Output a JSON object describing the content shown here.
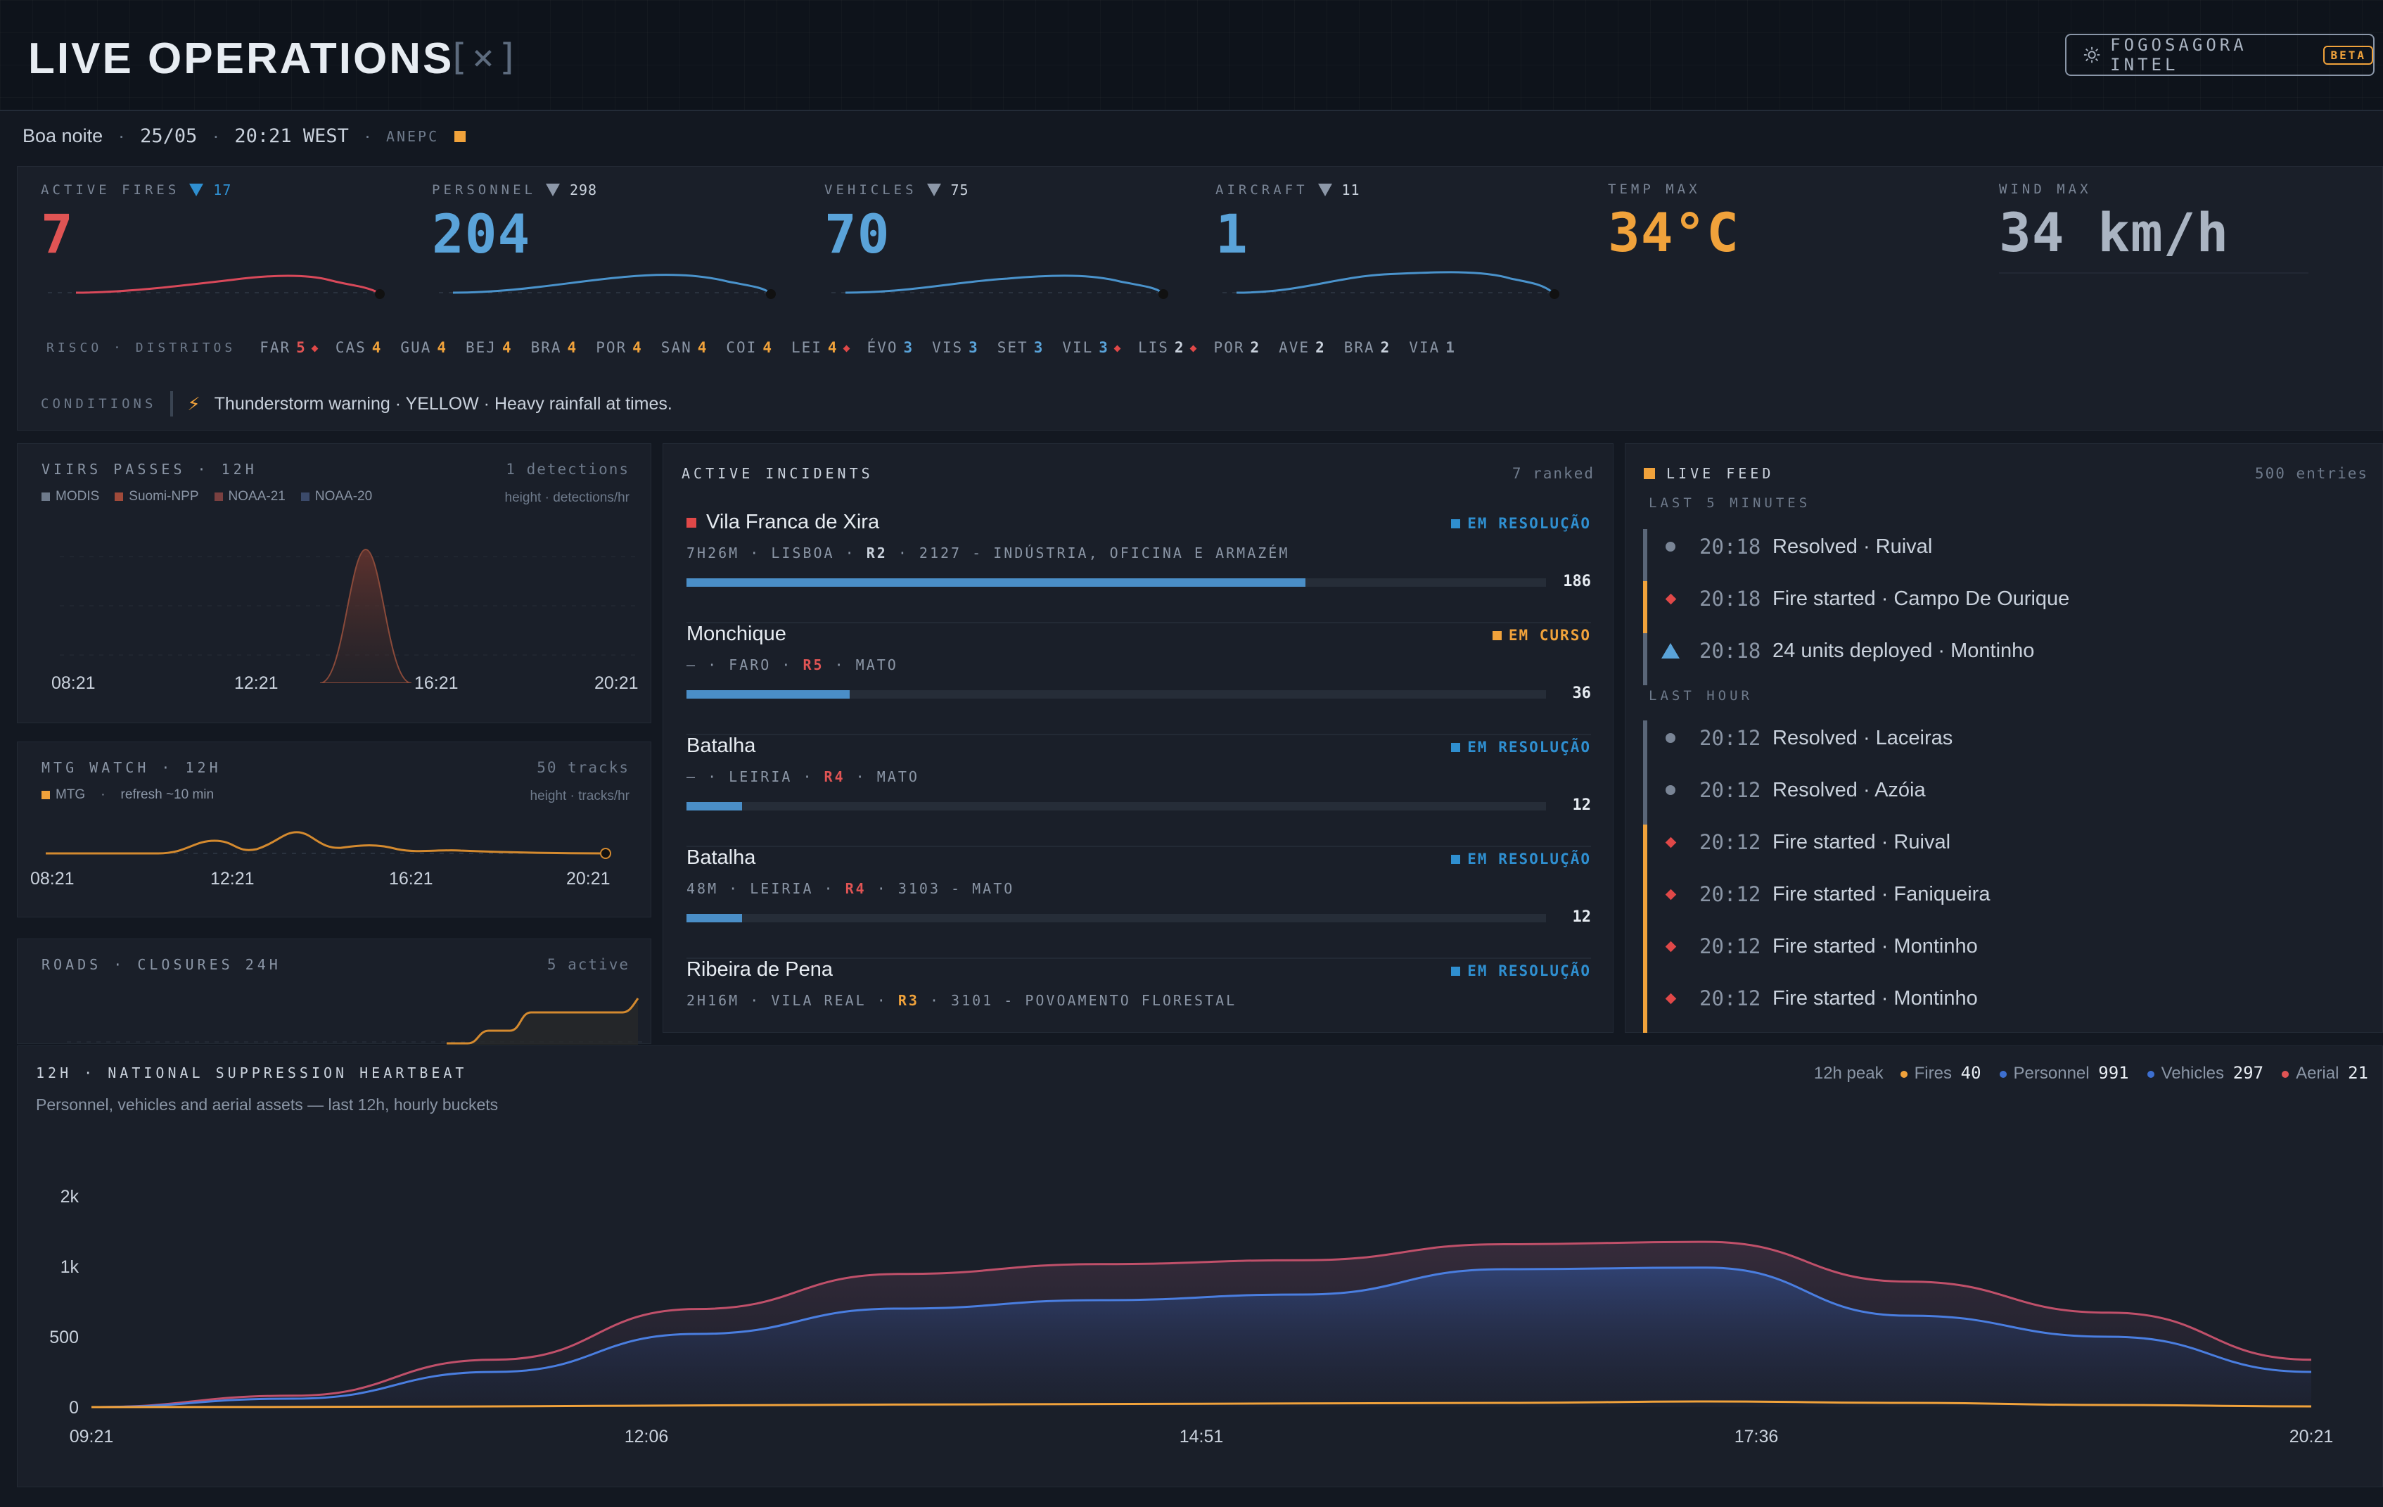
{
  "header": {
    "title": "LIVE OPERATIONS",
    "mark": "[×]",
    "intel_label": "FOGOSAGORA INTEL",
    "intel_badge": "BETA"
  },
  "subbar": {
    "greeting": "Boa noite",
    "date": "25/05",
    "time": "20:21 WEST",
    "source": "ANEPC"
  },
  "kpis": {
    "fires": {
      "label": "ACTIVE FIRES",
      "value": "7",
      "delta": "17",
      "color": "#e05454"
    },
    "personnel": {
      "label": "PERSONNEL",
      "value": "204",
      "delta": "298",
      "color": "#5aa3d9"
    },
    "vehicles": {
      "label": "VEHICLES",
      "value": "70",
      "delta": "75",
      "color": "#5aa3d9"
    },
    "aircraft": {
      "label": "AIRCRAFT",
      "value": "1",
      "delta": "11",
      "color": "#5aa3d9"
    },
    "temp": {
      "label": "TEMP MAX",
      "value": "34°C",
      "color": "#f0a23b"
    },
    "wind": {
      "label": "WIND MAX",
      "value": "34 km/h",
      "color": "#aab4c2"
    }
  },
  "districts": {
    "title": "RISCO · DISTRITOS",
    "items": [
      {
        "code": "FAR",
        "risk": "5",
        "color": "#e05454",
        "alert": true
      },
      {
        "code": "CAS",
        "risk": "4",
        "color": "#f0a23b",
        "alert": false
      },
      {
        "code": "GUA",
        "risk": "4",
        "color": "#f0a23b",
        "alert": false
      },
      {
        "code": "BEJ",
        "risk": "4",
        "color": "#f0a23b",
        "alert": false
      },
      {
        "code": "BRA",
        "risk": "4",
        "color": "#f0a23b",
        "alert": false
      },
      {
        "code": "POR",
        "risk": "4",
        "color": "#f0a23b",
        "alert": false
      },
      {
        "code": "SAN",
        "risk": "4",
        "color": "#f0a23b",
        "alert": false
      },
      {
        "code": "COI",
        "risk": "4",
        "color": "#f0a23b",
        "alert": false
      },
      {
        "code": "LEI",
        "risk": "4",
        "color": "#f0a23b",
        "alert": true
      },
      {
        "code": "ÉVO",
        "risk": "3",
        "color": "#5aa3d9",
        "alert": false
      },
      {
        "code": "VIS",
        "risk": "3",
        "color": "#5aa3d9",
        "alert": false
      },
      {
        "code": "SET",
        "risk": "3",
        "color": "#5aa3d9",
        "alert": false
      },
      {
        "code": "VIL",
        "risk": "3",
        "color": "#5aa3d9",
        "alert": true
      },
      {
        "code": "LIS",
        "risk": "2",
        "color": "#c9d1dc",
        "alert": true
      },
      {
        "code": "POR",
        "risk": "2",
        "color": "#c9d1dc",
        "alert": false
      },
      {
        "code": "AVE",
        "risk": "2",
        "color": "#c9d1dc",
        "alert": false
      },
      {
        "code": "BRA",
        "risk": "2",
        "color": "#c9d1dc",
        "alert": false
      },
      {
        "code": "VIA",
        "risk": "1",
        "color": "#8a95a5",
        "alert": false
      }
    ]
  },
  "conditions": {
    "title": "CONDITIONS",
    "text": "Thunderstorm warning · YELLOW · Heavy rainfall at times."
  },
  "viirs": {
    "title": "VIIRS PASSES · 12H",
    "count": "1 detections",
    "legend": [
      "MODIS",
      "Suomi-NPP",
      "NOAA-21",
      "NOAA-20"
    ],
    "note": "height · detections/hr",
    "ticks": [
      "08:21",
      "12:21",
      "16:21",
      "20:21"
    ]
  },
  "mtg": {
    "title": "MTG WATCH · 12H",
    "count": "50 tracks",
    "legend": "MTG",
    "refresh": "refresh ~10 min",
    "note": "height · tracks/hr",
    "ticks": [
      "08:21",
      "12:21",
      "16:21",
      "20:21"
    ]
  },
  "roads": {
    "title": "ROADS · CLOSURES 24H",
    "count": "5 active"
  },
  "incidents": {
    "title": "ACTIVE INCIDENTS",
    "count": "7 ranked",
    "items": [
      {
        "name": "Vila Franca de Xira",
        "meta_a": "7H26M · LISBOA · ",
        "risk": "R2",
        "meta_b": " · 2127 - INDÚSTRIA, OFICINA E ARMAZÉM",
        "status": "EM RESOLUÇÃO",
        "status_color": "#2f8fd0",
        "count": "186",
        "progress": 0.72,
        "risk_color": "#c9d1dc"
      },
      {
        "name": "Monchique",
        "meta_a": "— · FARO · ",
        "risk": "R5",
        "meta_b": " · MATO",
        "status": "EM CURSO",
        "status_color": "#f0a23b",
        "count": "36",
        "progress": 0.19,
        "risk_color": "#e05454"
      },
      {
        "name": "Batalha",
        "meta_a": "— · LEIRIA · ",
        "risk": "R4",
        "meta_b": " · MATO",
        "status": "EM RESOLUÇÃO",
        "status_color": "#2f8fd0",
        "count": "12",
        "progress": 0.065,
        "risk_color": "#e05454"
      },
      {
        "name": "Batalha",
        "meta_a": "48M · LEIRIA · ",
        "risk": "R4",
        "meta_b": " · 3103 - MATO",
        "status": "EM RESOLUÇÃO",
        "status_color": "#2f8fd0",
        "count": "12",
        "progress": 0.065,
        "risk_color": "#e05454"
      },
      {
        "name": "Ribeira de Pena",
        "meta_a": "2H16M · VILA REAL · ",
        "risk": "R3",
        "meta_b": " · 3101 - POVOAMENTO FLORESTAL",
        "status": "EM RESOLUÇÃO",
        "status_color": "#2f8fd0",
        "count": "",
        "progress": 0,
        "risk_color": "#f0a23b"
      }
    ]
  },
  "feed": {
    "title": "LIVE FEED",
    "count": "500 entries",
    "group1": "LAST 5 MINUTES",
    "group2": "LAST HOUR",
    "items": [
      {
        "time": "20:18",
        "text": "Resolved · Ruival",
        "kind": "resolved"
      },
      {
        "time": "20:18",
        "text": "Fire started · Campo De Ourique",
        "kind": "fire"
      },
      {
        "time": "20:18",
        "text": "24 units deployed · Montinho",
        "kind": "deploy"
      },
      {
        "time": "20:12",
        "text": "Resolved · Laceiras",
        "kind": "resolved"
      },
      {
        "time": "20:12",
        "text": "Resolved · Azóia",
        "kind": "resolved"
      },
      {
        "time": "20:12",
        "text": "Fire started · Ruival",
        "kind": "fire"
      },
      {
        "time": "20:12",
        "text": "Fire started · Faniqueira",
        "kind": "fire"
      },
      {
        "time": "20:12",
        "text": "Fire started · Montinho",
        "kind": "fire"
      },
      {
        "time": "20:12",
        "text": "Fire started · Montinho",
        "kind": "fire"
      }
    ]
  },
  "heartbeat": {
    "title": "12H · NATIONAL SUPPRESSION HEARTBEAT",
    "subtitle": "Personnel, vehicles and aerial assets — last 12h, hourly buckets",
    "peak_label": "12h peak",
    "peaks": [
      {
        "name": "Fires",
        "value": "40",
        "color": "#f0a23b"
      },
      {
        "name": "Personnel",
        "value": "991",
        "color": "#3d6fd0"
      },
      {
        "name": "Vehicles",
        "value": "297",
        "color": "#3d6fd0"
      },
      {
        "name": "Aerial",
        "value": "21",
        "color": "#e05454"
      }
    ]
  },
  "chart_data": [
    {
      "type": "area",
      "x": [
        "09:21",
        "10:21",
        "11:21",
        "12:21",
        "13:21",
        "14:21",
        "15:21",
        "16:21",
        "17:21",
        "18:21",
        "19:21",
        "20:21"
      ],
      "xticks": [
        "09:21",
        "12:06",
        "14:51",
        "17:36",
        "20:21"
      ],
      "yticks": [
        "0",
        "500",
        "1k",
        "2k"
      ],
      "series": [
        {
          "name": "Fires",
          "values": [
            0,
            1,
            5,
            12,
            18,
            22,
            26,
            30,
            40,
            30,
            15,
            5
          ]
        },
        {
          "name": "Personnel",
          "values": [
            0,
            60,
            250,
            520,
            700,
            760,
            800,
            980,
            991,
            650,
            500,
            250
          ]
        },
        {
          "name": "Vehicles",
          "values": [
            0,
            20,
            80,
            160,
            220,
            240,
            250,
            290,
            297,
            200,
            150,
            80
          ]
        },
        {
          "name": "Aerial",
          "values": [
            0,
            0,
            2,
            5,
            8,
            10,
            12,
            15,
            21,
            12,
            6,
            2
          ]
        }
      ]
    }
  ]
}
